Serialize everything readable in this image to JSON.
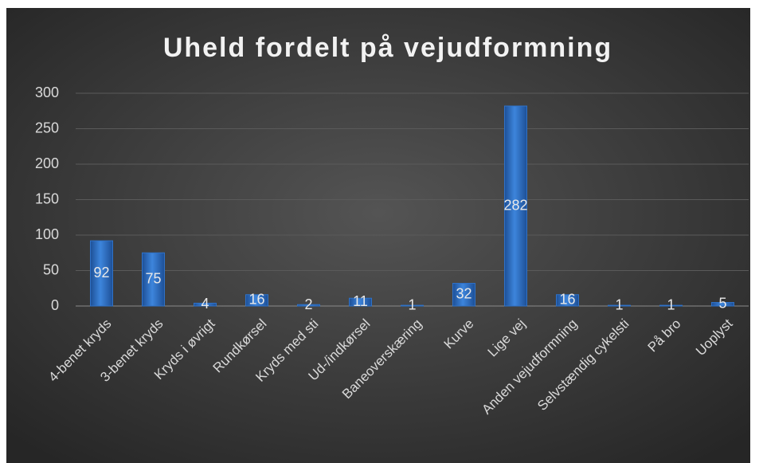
{
  "chart_data": {
    "type": "bar",
    "title": "Uheld fordelt på vejudformning",
    "categories": [
      "4-benet kryds",
      "3-benet kryds",
      "Kryds i øvrigt",
      "Rundkørsel",
      "Kryds med sti",
      "Ud-/indkørsel",
      "Baneoverskæring",
      "Kurve",
      "Lige vej",
      "Anden vejudformning",
      "Selvstændig cykelsti",
      "På bro",
      "Uoplyst"
    ],
    "values": [
      92,
      75,
      4,
      16,
      2,
      11,
      1,
      32,
      282,
      16,
      1,
      1,
      5
    ],
    "color": "#2f72c8",
    "ylim": [
      0,
      300
    ],
    "yticks": [
      0,
      50,
      100,
      150,
      200,
      250,
      300
    ],
    "grid": true
  }
}
